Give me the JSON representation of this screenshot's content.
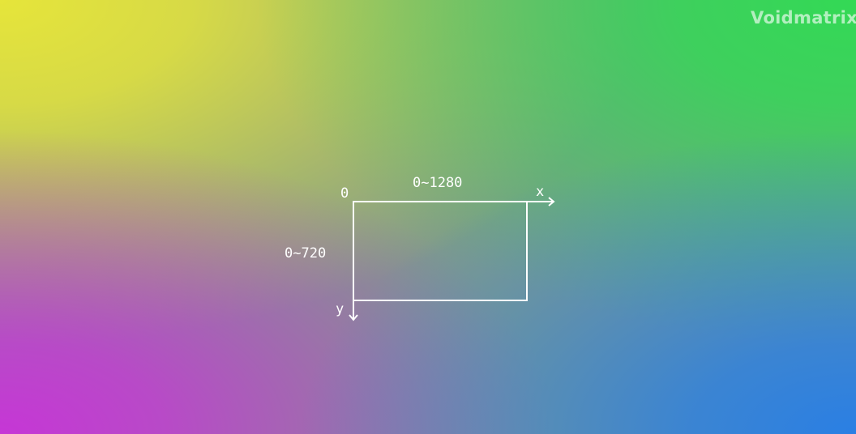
{
  "watermark": "Voidmatrix",
  "colors": {
    "top_left": "#e6e53a",
    "top_right": "#33d955",
    "bottom_left": "#c636d6",
    "bottom_right": "#2a7fe4",
    "line": "#ffffff"
  },
  "diagram": {
    "origin_label": "0",
    "x_axis_label": "x",
    "y_axis_label": "y",
    "width_label": "0~1280",
    "height_label": "0~720"
  }
}
